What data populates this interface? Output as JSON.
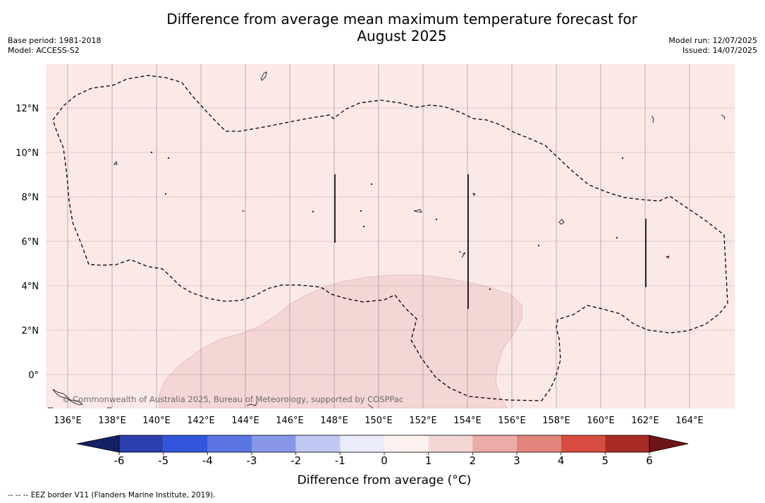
{
  "title": {
    "line1": "Difference from average mean maximum temperature forecast for",
    "line2": "August 2025"
  },
  "meta_left": {
    "base_period": "Base period: 1981-2018",
    "model": "Model: ACCESS-S2"
  },
  "meta_right": {
    "model_run": "Model run: 12/07/2025",
    "issued": "Issued: 14/07/2025"
  },
  "map": {
    "longitude_labels": [
      "136°E",
      "138°E",
      "140°E",
      "142°E",
      "144°E",
      "146°E",
      "148°E",
      "150°E",
      "152°E",
      "154°E",
      "156°E",
      "158°E",
      "160°E",
      "162°E",
      "164°E"
    ],
    "latitude_labels": [
      "12°N",
      "10°N",
      "8°N",
      "6°N",
      "4°N",
      "2°N",
      "0°"
    ],
    "lon_range": [
      135.0,
      166.0
    ],
    "lat_range": [
      -1.5,
      14.0
    ],
    "background_category": "0 to 1",
    "warm_region_category": "1 to 2",
    "copyright": "© Commonwealth of Australia 2025, Bureau of Meteorology, supported by COSPPac",
    "colors": {
      "background": "#fbe9e8",
      "warm_region": "#f4d6d4",
      "gridline": "#888888",
      "eez_border": "#000000"
    }
  },
  "colorbar": {
    "tick_labels": [
      "-6",
      "-5",
      "-4",
      "-3",
      "-2",
      "-1",
      "0",
      "1",
      "2",
      "3",
      "4",
      "5",
      "6"
    ],
    "label": "Difference from average ($^\\circ$C)",
    "label_text": "Difference from average (",
    "label_unit": "°C)",
    "colors": [
      "#142066",
      "#2b3fae",
      "#3355dd",
      "#5a74e2",
      "#8898e8",
      "#c0c8f4",
      "#eaecfb",
      "#fdf1f0",
      "#f4d6d4",
      "#ebaba6",
      "#e3847c",
      "#d84b40",
      "#a82a25",
      "#6e1516"
    ]
  },
  "footnote": "-- -- -- EEZ border V11 (Flanders Marine Institute, 2019)."
}
